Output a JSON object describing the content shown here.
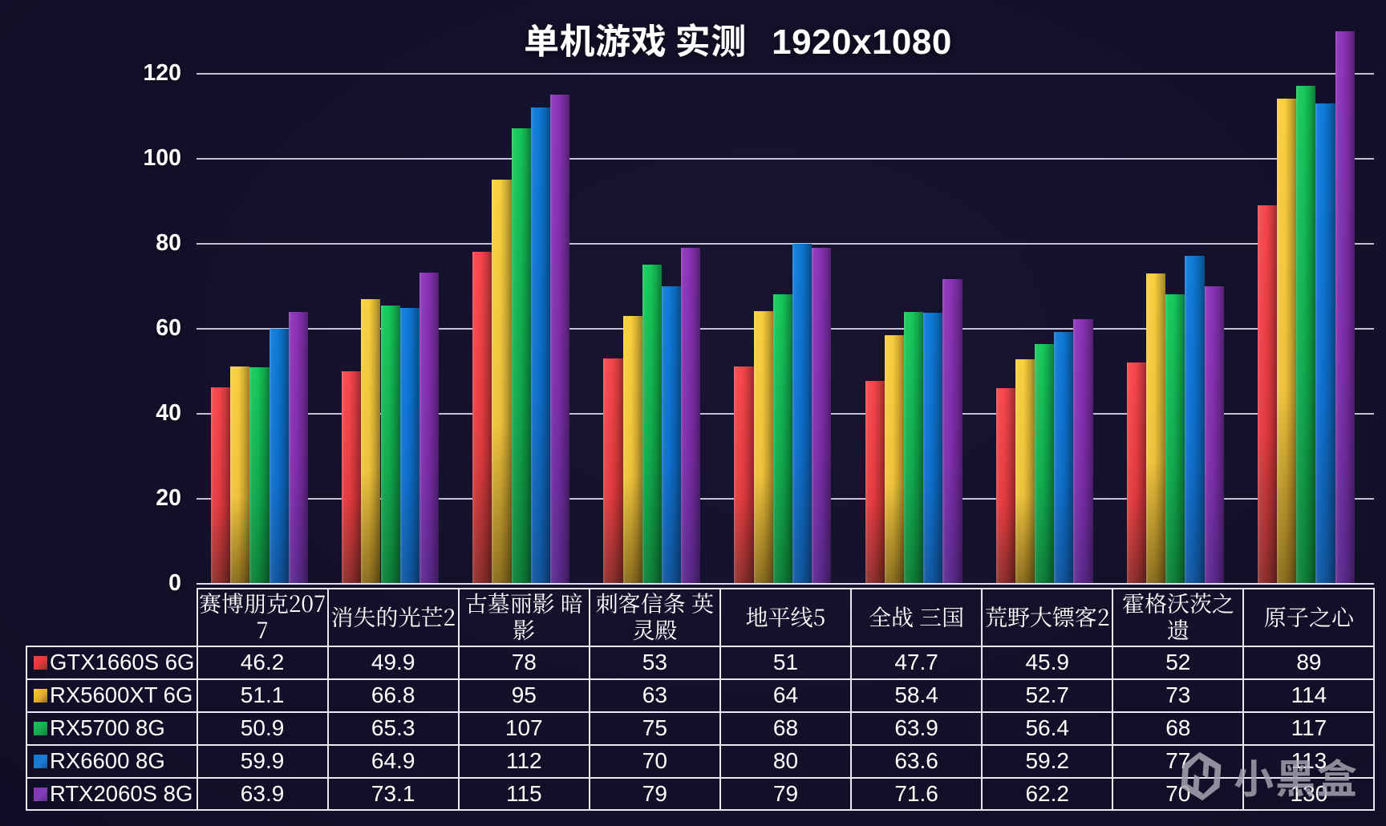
{
  "background_color": "#13112a",
  "grid_color": "#c7c5da",
  "table_border_color": "#e9e8f3",
  "text_color": "#ffffff",
  "watermark": {
    "text": "小黑盒",
    "logo": "heybox-hexagon-h-logo",
    "color": "#9c9caa"
  },
  "chart_data": {
    "type": "bar",
    "title": "单机游戏 实测   1920x1080",
    "xlabel": "",
    "ylabel": "",
    "y_axis": {
      "min": 0,
      "max": 120,
      "step": 20
    },
    "grid": true,
    "legend_position": "table-left-column",
    "categories": [
      "赛博朋克2077",
      "消失的光芒2",
      "古墓丽影 暗影",
      "刺客信条 英灵殿",
      "地平线5",
      "全战 三国",
      "荒野大镖客2",
      "霍格沃茨之遗",
      "原子之心"
    ],
    "category_display_lines": [
      [
        "赛博朋克207",
        "7"
      ],
      [
        "消失的光芒2"
      ],
      [
        "古墓丽影 暗",
        "影"
      ],
      [
        "刺客信条 英",
        "灵殿"
      ],
      [
        "地平线5"
      ],
      [
        "全战 三国"
      ],
      [
        "荒野大镖客2"
      ],
      [
        "霍格沃茨之",
        "遗"
      ],
      [
        "原子之心"
      ]
    ],
    "series": [
      {
        "name": "GTX1660S 6G",
        "swatch_color": "#d23a37",
        "bar_top": "#f8464c",
        "bar_mid": "#e23a3f",
        "bar_bottom": "#8c2f2b",
        "values": [
          46.2,
          49.9,
          78,
          53,
          51,
          47.7,
          45.9,
          52,
          89
        ]
      },
      {
        "name": "RX5600XT 6G",
        "swatch_color": "#dfa72d",
        "bar_top": "#f8cf3c",
        "bar_mid": "#eec23a",
        "bar_bottom": "#8a6c1d",
        "values": [
          51.1,
          66.8,
          95,
          63,
          64,
          58.4,
          52.7,
          73,
          114
        ]
      },
      {
        "name": "RX5700 8G",
        "swatch_color": "#17a84c",
        "bar_top": "#16c95b",
        "bar_mid": "#10a94c",
        "bar_bottom": "#0e8038",
        "values": [
          50.9,
          65.3,
          107,
          75,
          68,
          63.9,
          56.4,
          68,
          117
        ]
      },
      {
        "name": "RX6600 8G",
        "swatch_color": "#1d7bd2",
        "bar_top": "#0e7ad8",
        "bar_mid": "#0d6ecb",
        "bar_bottom": "#1156a0",
        "values": [
          59.9,
          64.9,
          112,
          70,
          80,
          63.6,
          59.2,
          77,
          113
        ]
      },
      {
        "name": "RTX2060S 8G",
        "swatch_color": "#7c3fb3",
        "bar_top": "#8b33b8",
        "bar_mid": "#7d2daa",
        "bar_bottom": "#5c2a8e",
        "values": [
          63.9,
          73.1,
          115,
          79,
          79,
          71.6,
          62.2,
          70,
          130
        ]
      }
    ]
  }
}
